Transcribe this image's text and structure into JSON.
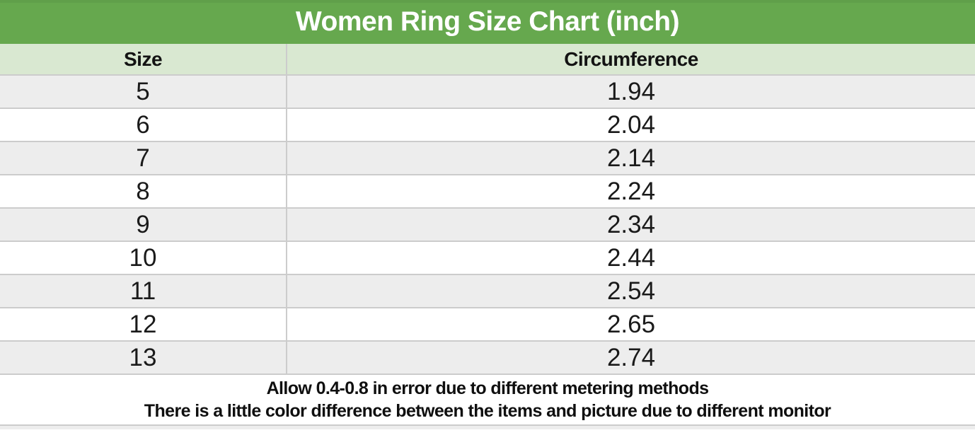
{
  "page": {
    "title": "Women Ring Size Chart (inch)"
  },
  "chart_data": {
    "type": "table",
    "title": "Women Ring Size Chart (inch)",
    "columns": [
      "Size",
      "Circumference"
    ],
    "rows": [
      [
        "5",
        "1.94"
      ],
      [
        "6",
        "2.04"
      ],
      [
        "7",
        "2.14"
      ],
      [
        "8",
        "2.24"
      ],
      [
        "9",
        "2.34"
      ],
      [
        "10",
        "2.44"
      ],
      [
        "11",
        "2.54"
      ],
      [
        "12",
        "2.65"
      ],
      [
        "13",
        "2.74"
      ]
    ],
    "notes": [
      "Allow 0.4-0.8 in error due to different metering methods",
      "There is a little color difference between the items and picture due to different monitor"
    ],
    "layout": {
      "header_position": "top",
      "row_striping": true,
      "first_data_row_striped": true
    }
  },
  "colors": {
    "header_bg": "#66a84e",
    "subheader_bg": "#d9e8d1",
    "row_stripe_bg": "#ededed",
    "row_plain_bg": "#ffffff",
    "grid_line": "#cccccc",
    "title_text": "#ffffff",
    "body_text": "#141414"
  }
}
